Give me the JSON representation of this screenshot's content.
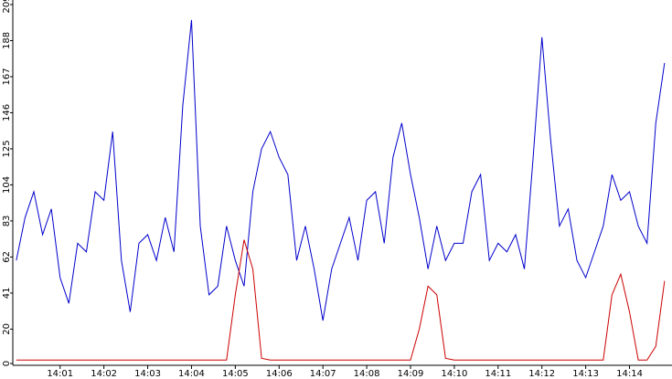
{
  "chart_data": {
    "type": "line",
    "x": [
      0,
      0.2,
      0.4,
      0.6,
      0.8,
      1,
      1.2,
      1.4,
      1.6,
      1.8,
      2,
      2.2,
      2.4,
      2.6,
      2.8,
      3,
      3.2,
      3.4,
      3.6,
      3.8,
      4,
      4.2,
      4.4,
      4.6,
      4.8,
      5,
      5.2,
      5.4,
      5.6,
      5.8,
      6,
      6.2,
      6.4,
      6.6,
      6.8,
      7,
      7.2,
      7.4,
      7.6,
      7.8,
      8,
      8.2,
      8.4,
      8.6,
      8.8,
      9,
      9.2,
      9.4,
      9.6,
      9.8,
      10,
      10.2,
      10.4,
      10.6,
      10.8,
      11,
      11.2,
      11.4,
      11.6,
      11.8,
      12,
      12.2,
      12.4,
      12.6,
      12.8,
      13,
      13.2,
      13.4,
      13.6,
      13.8,
      14,
      14.2,
      14.4,
      14.6,
      14.8
    ],
    "series": [
      {
        "color": "#0000cc",
        "values": [
          60,
          85,
          100,
          75,
          90,
          50,
          35,
          70,
          65,
          100,
          95,
          135,
          60,
          30,
          70,
          75,
          60,
          85,
          65,
          150,
          200,
          80,
          40,
          45,
          80,
          60,
          45,
          100,
          125,
          135,
          120,
          110,
          60,
          80,
          55,
          25,
          55,
          70,
          85,
          60,
          95,
          100,
          70,
          120,
          140,
          110,
          85,
          55,
          80,
          60,
          70,
          70,
          100,
          110,
          60,
          70,
          65,
          75,
          55,
          120,
          190,
          130,
          80,
          90,
          60,
          50,
          65,
          80,
          110,
          95,
          100,
          80,
          70,
          140,
          175
        ]
      },
      {
        "color": "#cc0000",
        "values": [
          2,
          2,
          2,
          2,
          2,
          2,
          2,
          2,
          2,
          2,
          2,
          2,
          2,
          2,
          2,
          2,
          2,
          2,
          2,
          2,
          2,
          2,
          2,
          2,
          2,
          40,
          72,
          55,
          3,
          2,
          2,
          2,
          2,
          2,
          2,
          2,
          2,
          2,
          2,
          2,
          2,
          2,
          2,
          2,
          2,
          2,
          20,
          45,
          40,
          3,
          2,
          2,
          2,
          2,
          2,
          2,
          2,
          2,
          2,
          2,
          2,
          2,
          2,
          2,
          2,
          2,
          2,
          2,
          40,
          52,
          30,
          2,
          2,
          10,
          48
        ]
      }
    ],
    "xlim": [
      -0.08,
      14.97
    ],
    "xticks": [
      {
        "value": 1,
        "label": "14:01"
      },
      {
        "value": 2,
        "label": "14:02"
      },
      {
        "value": 3,
        "label": "14:03"
      },
      {
        "value": 4,
        "label": "14:04"
      },
      {
        "value": 5,
        "label": "14:05"
      },
      {
        "value": 6,
        "label": "14:06"
      },
      {
        "value": 7,
        "label": "14:07"
      },
      {
        "value": 8,
        "label": "14:08"
      },
      {
        "value": 9,
        "label": "14:09"
      },
      {
        "value": 10,
        "label": "14:10"
      },
      {
        "value": 11,
        "label": "14:11"
      },
      {
        "value": 12,
        "label": "14:12"
      },
      {
        "value": 13,
        "label": "14:13"
      },
      {
        "value": 14,
        "label": "14:14"
      }
    ],
    "ylim": [
      0,
      209
    ],
    "yticks": [
      0,
      20,
      41,
      62,
      83,
      104,
      125,
      146,
      167,
      188,
      209
    ]
  }
}
